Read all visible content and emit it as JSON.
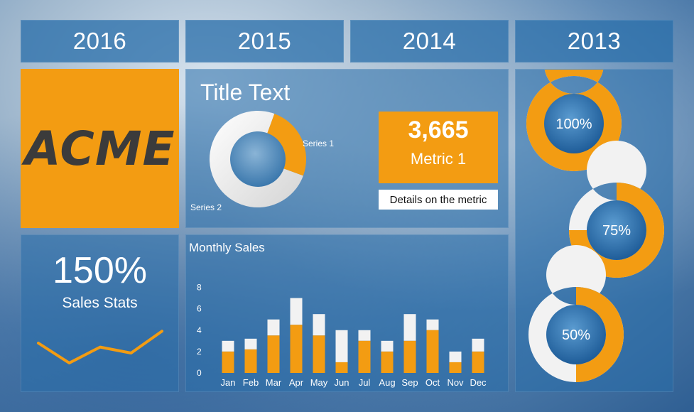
{
  "years": [
    "2016",
    "2015",
    "2014",
    "2013"
  ],
  "logo": {
    "text": "ACME",
    "color": "#f39c12"
  },
  "sales": {
    "value": "150%",
    "label": "Sales Stats",
    "trend": [
      3.0,
      1.0,
      2.6,
      2.0,
      4.2
    ]
  },
  "title_panel": {
    "title": "Title Text",
    "donut": {
      "series1_label": "Series 1",
      "series2_label": "Series 2",
      "series1_fraction": 0.25
    }
  },
  "metric": {
    "value": "3,665",
    "label": "Metric 1",
    "details": "Details on the metric"
  },
  "rings": [
    {
      "label": "100%",
      "fraction": 1.0
    },
    {
      "label": "75%",
      "fraction": 0.75
    },
    {
      "label": "50%",
      "fraction": 0.5
    }
  ],
  "colors": {
    "accent": "#f39c12",
    "panel": "#2e6fa8",
    "white": "#ffffff"
  },
  "chart_data": {
    "type": "bar",
    "title": "Monthly Sales",
    "categories": [
      "Jan",
      "Feb",
      "Mar",
      "Apr",
      "May",
      "Jun",
      "Jul",
      "Aug",
      "Sep",
      "Oct",
      "Nov",
      "Dec"
    ],
    "series": [
      {
        "values": [
          2,
          2.2,
          3.5,
          4.5,
          3.5,
          1,
          3,
          2,
          3,
          4,
          1,
          2
        ]
      },
      {
        "values": [
          1,
          1,
          1.5,
          2.5,
          2,
          3,
          1,
          1,
          2.5,
          1,
          1,
          1.2
        ]
      }
    ],
    "yticks": [
      0,
      2,
      4,
      6,
      8
    ],
    "ylim": [
      0,
      8.5
    ],
    "stacked": true
  }
}
